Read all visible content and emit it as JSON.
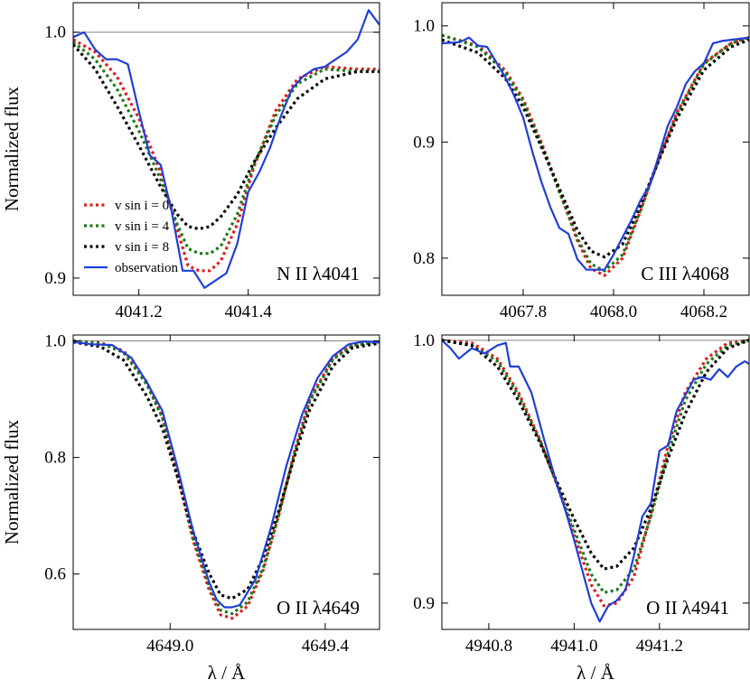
{
  "chart_data": [
    {
      "type": "line",
      "line_label": "N II λ4041",
      "ylabel": "Normalized flux",
      "xlabel": "",
      "xlim": [
        4041.08,
        4041.64
      ],
      "ylim": [
        0.893,
        1.012
      ],
      "xticks": [
        4041.2,
        4041.4
      ],
      "xtick_labels": [
        "4041.2",
        "4041.4"
      ],
      "yticks": [
        0.9,
        1.0
      ],
      "ytick_labels": [
        "0.9",
        "1.0"
      ],
      "reference_line": 1.0,
      "legend": {
        "placement": "bottom-left",
        "entries": [
          "v sin i = 0",
          "v sin i = 4",
          "v sin i = 8",
          "observation"
        ]
      },
      "series": [
        {
          "name": "v sin i = 0",
          "color": "#e31a1c",
          "style": "dotted",
          "x": [
            4041.08,
            4041.12,
            4041.16,
            4041.2,
            4041.24,
            4041.27,
            4041.29,
            4041.31,
            4041.33,
            4041.35,
            4041.38,
            4041.41,
            4041.45,
            4041.49,
            4041.54,
            4041.6,
            4041.64
          ],
          "y": [
            0.997,
            0.992,
            0.982,
            0.965,
            0.943,
            0.92,
            0.905,
            0.903,
            0.903,
            0.907,
            0.922,
            0.945,
            0.968,
            0.981,
            0.986,
            0.985,
            0.985
          ]
        },
        {
          "name": "v sin i = 4",
          "color": "#1a7a1a",
          "style": "dotted",
          "x": [
            4041.08,
            4041.12,
            4041.16,
            4041.2,
            4041.24,
            4041.27,
            4041.29,
            4041.31,
            4041.33,
            4041.35,
            4041.38,
            4041.41,
            4041.45,
            4041.49,
            4041.54,
            4041.6,
            4041.64
          ],
          "y": [
            0.996,
            0.989,
            0.977,
            0.96,
            0.94,
            0.922,
            0.912,
            0.91,
            0.91,
            0.913,
            0.926,
            0.946,
            0.966,
            0.979,
            0.985,
            0.984,
            0.984
          ]
        },
        {
          "name": "v sin i = 8",
          "color": "#000000",
          "style": "dotted",
          "x": [
            4041.08,
            4041.12,
            4041.16,
            4041.2,
            4041.24,
            4041.27,
            4041.29,
            4041.31,
            4041.33,
            4041.35,
            4041.38,
            4041.41,
            4041.45,
            4041.49,
            4041.54,
            4041.6,
            4041.64
          ],
          "y": [
            0.995,
            0.985,
            0.97,
            0.954,
            0.937,
            0.926,
            0.921,
            0.92,
            0.921,
            0.925,
            0.934,
            0.947,
            0.961,
            0.973,
            0.981,
            0.984,
            0.984
          ]
        },
        {
          "name": "observation",
          "color": "#1f3fd9",
          "style": "solid",
          "x": [
            4041.08,
            4041.1,
            4041.12,
            4041.14,
            4041.16,
            4041.18,
            4041.2,
            4041.22,
            4041.24,
            4041.26,
            4041.28,
            4041.3,
            4041.32,
            4041.34,
            4041.36,
            4041.38,
            4041.4,
            4041.42,
            4041.44,
            4041.46,
            4041.48,
            4041.5,
            4041.52,
            4041.54,
            4041.56,
            4041.58,
            4041.6,
            4041.62,
            4041.64
          ],
          "y": [
            0.998,
            1.0,
            0.993,
            0.989,
            0.989,
            0.987,
            0.968,
            0.95,
            0.946,
            0.927,
            0.903,
            0.903,
            0.896,
            0.899,
            0.902,
            0.914,
            0.935,
            0.943,
            0.953,
            0.966,
            0.977,
            0.982,
            0.985,
            0.986,
            0.989,
            0.992,
            0.997,
            1.009,
            1.003
          ]
        }
      ]
    },
    {
      "type": "line",
      "line_label": "C III λ4068",
      "ylabel": "",
      "xlabel": "",
      "xlim": [
        4067.62,
        4068.3
      ],
      "ylim": [
        0.768,
        1.02
      ],
      "xticks": [
        4067.8,
        4068.0,
        4068.2
      ],
      "xtick_labels": [
        "4067.8",
        "4068.0",
        "4068.2"
      ],
      "yticks": [
        0.8,
        0.9,
        1.0
      ],
      "ytick_labels": [
        "0.8",
        "0.9",
        "1.0"
      ],
      "series": [
        {
          "name": "v sin i = 0",
          "color": "#e31a1c",
          "style": "dotted",
          "x": [
            4067.62,
            4067.7,
            4067.76,
            4067.8,
            4067.84,
            4067.88,
            4067.92,
            4067.95,
            4067.98,
            4068.02,
            4068.06,
            4068.1,
            4068.14,
            4068.2,
            4068.26,
            4068.3
          ],
          "y": [
            0.992,
            0.983,
            0.962,
            0.937,
            0.9,
            0.858,
            0.815,
            0.791,
            0.785,
            0.8,
            0.841,
            0.885,
            0.925,
            0.968,
            0.985,
            0.99
          ]
        },
        {
          "name": "v sin i = 4",
          "color": "#1a7a1a",
          "style": "dotted",
          "x": [
            4067.62,
            4067.7,
            4067.76,
            4067.8,
            4067.84,
            4067.88,
            4067.92,
            4067.95,
            4067.98,
            4068.02,
            4068.06,
            4068.1,
            4068.14,
            4068.2,
            4068.26,
            4068.3
          ],
          "y": [
            0.992,
            0.982,
            0.96,
            0.935,
            0.898,
            0.857,
            0.817,
            0.795,
            0.789,
            0.803,
            0.842,
            0.885,
            0.924,
            0.967,
            0.985,
            0.99
          ]
        },
        {
          "name": "v sin i = 8",
          "color": "#000000",
          "style": "dotted",
          "x": [
            4067.62,
            4067.7,
            4067.76,
            4067.8,
            4067.84,
            4067.88,
            4067.92,
            4067.95,
            4067.98,
            4068.02,
            4068.06,
            4068.1,
            4068.14,
            4068.2,
            4068.26,
            4068.3
          ],
          "y": [
            0.988,
            0.977,
            0.955,
            0.93,
            0.896,
            0.86,
            0.824,
            0.806,
            0.801,
            0.812,
            0.846,
            0.884,
            0.92,
            0.962,
            0.982,
            0.988
          ]
        },
        {
          "name": "observation",
          "color": "#1f3fd9",
          "style": "solid",
          "x": [
            4067.62,
            4067.66,
            4067.68,
            4067.7,
            4067.72,
            4067.74,
            4067.76,
            4067.78,
            4067.8,
            4067.82,
            4067.84,
            4067.86,
            4067.88,
            4067.9,
            4067.92,
            4067.94,
            4067.96,
            4067.98,
            4068.0,
            4068.02,
            4068.04,
            4068.06,
            4068.08,
            4068.1,
            4068.12,
            4068.14,
            4068.16,
            4068.18,
            4068.2,
            4068.22,
            4068.24,
            4068.26,
            4068.28,
            4068.3
          ],
          "y": [
            0.985,
            0.986,
            0.99,
            0.983,
            0.982,
            0.969,
            0.956,
            0.94,
            0.921,
            0.892,
            0.866,
            0.844,
            0.826,
            0.821,
            0.799,
            0.79,
            0.79,
            0.79,
            0.803,
            0.818,
            0.833,
            0.85,
            0.863,
            0.888,
            0.914,
            0.93,
            0.95,
            0.961,
            0.968,
            0.985,
            0.987,
            0.988,
            0.989,
            0.99
          ]
        }
      ]
    },
    {
      "type": "line",
      "line_label": "O II λ4649",
      "ylabel": "Normalized flux",
      "xlabel": "λ / Å",
      "xlim": [
        4648.75,
        4649.54
      ],
      "ylim": [
        0.505,
        1.01
      ],
      "xticks": [
        4649.0,
        4649.4
      ],
      "xtick_labels": [
        "4649.0",
        "4649.4"
      ],
      "yticks": [
        0.6,
        0.8,
        1.0
      ],
      "ytick_labels": [
        "0.6",
        "0.8",
        "1.0"
      ],
      "reference_line": 1.0,
      "series": [
        {
          "name": "v sin i = 0",
          "color": "#e31a1c",
          "style": "dotted",
          "x": [
            4648.75,
            4648.82,
            4648.88,
            4648.94,
            4648.98,
            4649.02,
            4649.06,
            4649.1,
            4649.13,
            4649.16,
            4649.2,
            4649.24,
            4649.28,
            4649.32,
            4649.36,
            4649.42,
            4649.47,
            4649.54
          ],
          "y": [
            1.0,
            0.997,
            0.983,
            0.929,
            0.87,
            0.766,
            0.656,
            0.574,
            0.53,
            0.524,
            0.545,
            0.607,
            0.7,
            0.808,
            0.9,
            0.97,
            0.993,
            0.998
          ]
        },
        {
          "name": "v sin i = 4",
          "color": "#1a7a1a",
          "style": "dotted",
          "x": [
            4648.75,
            4648.82,
            4648.88,
            4648.94,
            4648.98,
            4649.02,
            4649.06,
            4649.1,
            4649.13,
            4649.16,
            4649.2,
            4649.24,
            4649.28,
            4649.32,
            4649.36,
            4649.42,
            4649.47,
            4649.54
          ],
          "y": [
            1.0,
            0.996,
            0.98,
            0.925,
            0.868,
            0.767,
            0.66,
            0.581,
            0.538,
            0.532,
            0.552,
            0.611,
            0.7,
            0.805,
            0.896,
            0.968,
            0.992,
            0.998
          ]
        },
        {
          "name": "v sin i = 8",
          "color": "#000000",
          "style": "dotted",
          "x": [
            4648.75,
            4648.82,
            4648.88,
            4648.94,
            4648.98,
            4649.02,
            4649.06,
            4649.1,
            4649.13,
            4649.16,
            4649.2,
            4649.24,
            4649.28,
            4649.32,
            4649.36,
            4649.42,
            4649.47,
            4649.54
          ],
          "y": [
            0.998,
            0.99,
            0.967,
            0.905,
            0.85,
            0.764,
            0.671,
            0.602,
            0.564,
            0.558,
            0.574,
            0.628,
            0.708,
            0.8,
            0.882,
            0.957,
            0.988,
            0.996
          ]
        },
        {
          "name": "observation",
          "color": "#1f3fd9",
          "style": "solid",
          "x": [
            4648.75,
            4648.8,
            4648.85,
            4648.9,
            4648.94,
            4648.98,
            4649.02,
            4649.06,
            4649.1,
            4649.12,
            4649.14,
            4649.16,
            4649.18,
            4649.22,
            4649.26,
            4649.3,
            4649.34,
            4649.38,
            4649.42,
            4649.46,
            4649.5,
            4649.54
          ],
          "y": [
            0.998,
            0.994,
            0.993,
            0.971,
            0.929,
            0.88,
            0.78,
            0.672,
            0.587,
            0.556,
            0.543,
            0.543,
            0.547,
            0.591,
            0.679,
            0.786,
            0.873,
            0.936,
            0.974,
            0.994,
            0.999,
            0.997
          ]
        }
      ]
    },
    {
      "type": "line",
      "line_label": "O II λ4941",
      "ylabel": "",
      "xlabel": "λ / Å",
      "xlim": [
        4940.69,
        4941.41
      ],
      "ylim": [
        0.89,
        1.002
      ],
      "xticks": [
        4940.8,
        4941.0,
        4941.2
      ],
      "xtick_labels": [
        "4940.8",
        "4941.0",
        "4941.2"
      ],
      "yticks": [
        0.9,
        1.0
      ],
      "ytick_labels": [
        "0.9",
        "1.0"
      ],
      "reference_line": 1.0,
      "series": [
        {
          "name": "v sin i = 0",
          "color": "#e31a1c",
          "style": "dotted",
          "x": [
            4940.69,
            4940.76,
            4940.82,
            4940.87,
            4940.92,
            4940.96,
            4941.0,
            4941.04,
            4941.07,
            4941.1,
            4941.14,
            4941.18,
            4941.22,
            4941.26,
            4941.31,
            4941.36,
            4941.41
          ],
          "y": [
            1.0,
            0.999,
            0.993,
            0.98,
            0.962,
            0.945,
            0.926,
            0.907,
            0.899,
            0.9,
            0.91,
            0.934,
            0.96,
            0.98,
            0.993,
            0.999,
            1.0
          ]
        },
        {
          "name": "v sin i = 4",
          "color": "#1a7a1a",
          "style": "dotted",
          "x": [
            4940.69,
            4940.76,
            4940.82,
            4940.87,
            4940.92,
            4940.96,
            4941.0,
            4941.04,
            4941.07,
            4941.1,
            4941.14,
            4941.18,
            4941.22,
            4941.26,
            4941.31,
            4941.36,
            4941.41
          ],
          "y": [
            1.0,
            0.998,
            0.992,
            0.979,
            0.962,
            0.945,
            0.928,
            0.911,
            0.904,
            0.905,
            0.913,
            0.933,
            0.957,
            0.977,
            0.991,
            0.998,
            1.0
          ]
        },
        {
          "name": "v sin i = 8",
          "color": "#000000",
          "style": "dotted",
          "x": [
            4940.69,
            4940.76,
            4940.82,
            4940.87,
            4940.92,
            4940.96,
            4941.0,
            4941.04,
            4941.07,
            4941.1,
            4941.14,
            4941.18,
            4941.22,
            4941.26,
            4941.31,
            4941.36,
            4941.41
          ],
          "y": [
            1.0,
            0.998,
            0.99,
            0.977,
            0.961,
            0.946,
            0.932,
            0.919,
            0.913,
            0.914,
            0.921,
            0.936,
            0.955,
            0.972,
            0.988,
            0.997,
            1.0
          ]
        },
        {
          "name": "observation",
          "color": "#1f3fd9",
          "style": "solid",
          "x": [
            4940.69,
            4940.71,
            4940.73,
            4940.76,
            4940.79,
            4940.82,
            4940.84,
            4940.85,
            4940.87,
            4940.9,
            4940.93,
            4940.96,
            4940.98,
            4941.0,
            4941.02,
            4941.04,
            4941.06,
            4941.08,
            4941.1,
            4941.12,
            4941.14,
            4941.16,
            4941.18,
            4941.2,
            4941.22,
            4941.24,
            4941.26,
            4941.28,
            4941.3,
            4941.32,
            4941.34,
            4941.36,
            4941.38,
            4941.4,
            4941.41
          ],
          "y": [
            1.0,
            0.997,
            0.993,
            0.997,
            0.995,
            0.998,
            0.999,
            0.99,
            0.99,
            0.98,
            0.962,
            0.945,
            0.935,
            0.924,
            0.912,
            0.9,
            0.893,
            0.899,
            0.901,
            0.905,
            0.918,
            0.933,
            0.938,
            0.958,
            0.96,
            0.973,
            0.979,
            0.985,
            0.986,
            0.985,
            0.989,
            0.986,
            0.99,
            0.992,
            0.991
          ]
        }
      ]
    }
  ]
}
